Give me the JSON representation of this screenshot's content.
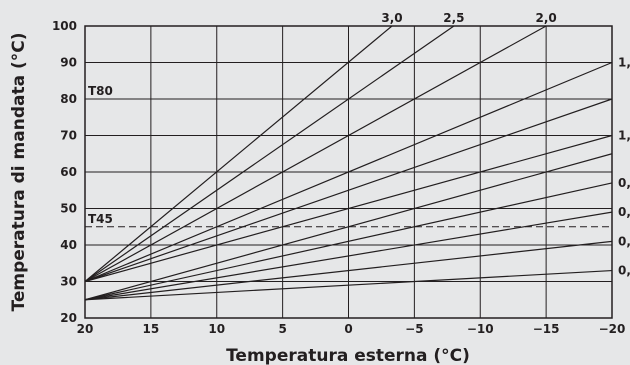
{
  "chart_data": {
    "type": "line",
    "xlabel": "Temperatura esterna (°C)",
    "ylabel": "Temperatura di mandata (°C)",
    "x_ticks": [
      20,
      15,
      10,
      5,
      0,
      -5,
      -10,
      -15,
      -20
    ],
    "x_tick_labels": [
      "20",
      "15",
      "10",
      "5",
      "0",
      "−5",
      "−10",
      "−15",
      "−20"
    ],
    "y_ticks": [
      20,
      30,
      40,
      50,
      60,
      70,
      80,
      90,
      100
    ],
    "xlim": [
      20,
      -20
    ],
    "ylim": [
      20,
      100
    ],
    "reference_lines": [
      {
        "label": "T80",
        "y": 80
      },
      {
        "label": "T45",
        "y": 45
      }
    ],
    "series": [
      {
        "name": "3,0",
        "points": [
          [
            20,
            30
          ],
          [
            -3.3,
            100
          ]
        ]
      },
      {
        "name": "2,5",
        "points": [
          [
            20,
            30
          ],
          [
            -8,
            100
          ]
        ]
      },
      {
        "name": "2,0",
        "points": [
          [
            20,
            30
          ],
          [
            -15,
            100
          ]
        ]
      },
      {
        "name": "1,",
        "points": [
          [
            20,
            30
          ],
          [
            -20,
            90
          ]
        ]
      },
      {
        "name": "",
        "points": [
          [
            20,
            30
          ],
          [
            -20,
            80
          ]
        ]
      },
      {
        "name": "1,",
        "points": [
          [
            20,
            30
          ],
          [
            -20,
            70
          ]
        ]
      },
      {
        "name": "",
        "points": [
          [
            20,
            25
          ],
          [
            -20,
            65
          ]
        ]
      },
      {
        "name": "0,",
        "points": [
          [
            20,
            25
          ],
          [
            -20,
            57
          ]
        ]
      },
      {
        "name": "0,",
        "points": [
          [
            20,
            25
          ],
          [
            -20,
            49
          ]
        ]
      },
      {
        "name": "0,",
        "points": [
          [
            20,
            25
          ],
          [
            -20,
            41
          ]
        ]
      },
      {
        "name": "0,",
        "points": [
          [
            20,
            25
          ],
          [
            -20,
            33
          ]
        ]
      }
    ],
    "grid": true,
    "legend": "line-end labels"
  }
}
